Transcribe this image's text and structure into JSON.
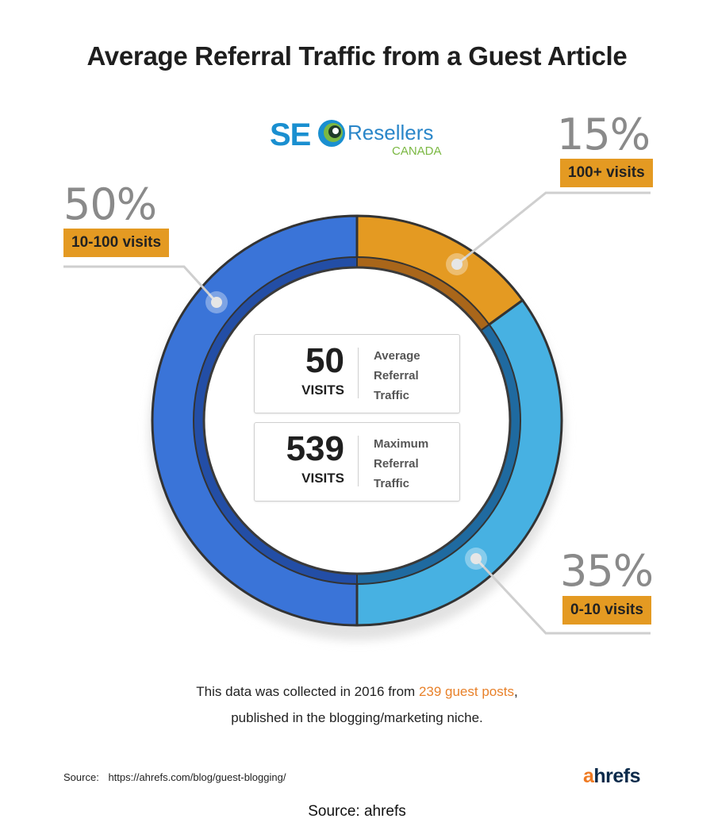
{
  "title": "Average Referral Traffic from a Guest Article",
  "logo": {
    "seo": "SE",
    "resellers": "Resellers",
    "canada": "CANADA"
  },
  "chart_data": {
    "type": "pie",
    "variant": "donut",
    "slices": [
      {
        "percent_label": "15%",
        "label": "100+ visits",
        "value": 15,
        "color": "#e49a22"
      },
      {
        "percent_label": "35%",
        "label": "0-10 visits",
        "value": 35,
        "color": "#47b1e2"
      },
      {
        "percent_label": "50%",
        "label": "10-100 visits",
        "value": 50,
        "color": "#3a74d8"
      }
    ],
    "center_stats": [
      {
        "value": "50",
        "unit": "VISITS",
        "line1": "Average",
        "line2": "Referral",
        "line3": "Traffic"
      },
      {
        "value": "539",
        "unit": "VISITS",
        "line1": "Maximum",
        "line2": "Referral",
        "line3": "Traffic"
      }
    ]
  },
  "note": {
    "pre": "This data was collected in 2016 from ",
    "highlight": "239 guest posts",
    "post": ",",
    "line2": "published in the blogging/marketing niche."
  },
  "source": {
    "label": "Source:",
    "url": "https://ahrefs.com/blog/guest-blogging/"
  },
  "brand": {
    "a": "a",
    "rest": "hrefs"
  },
  "footer": "Source: ahrefs"
}
